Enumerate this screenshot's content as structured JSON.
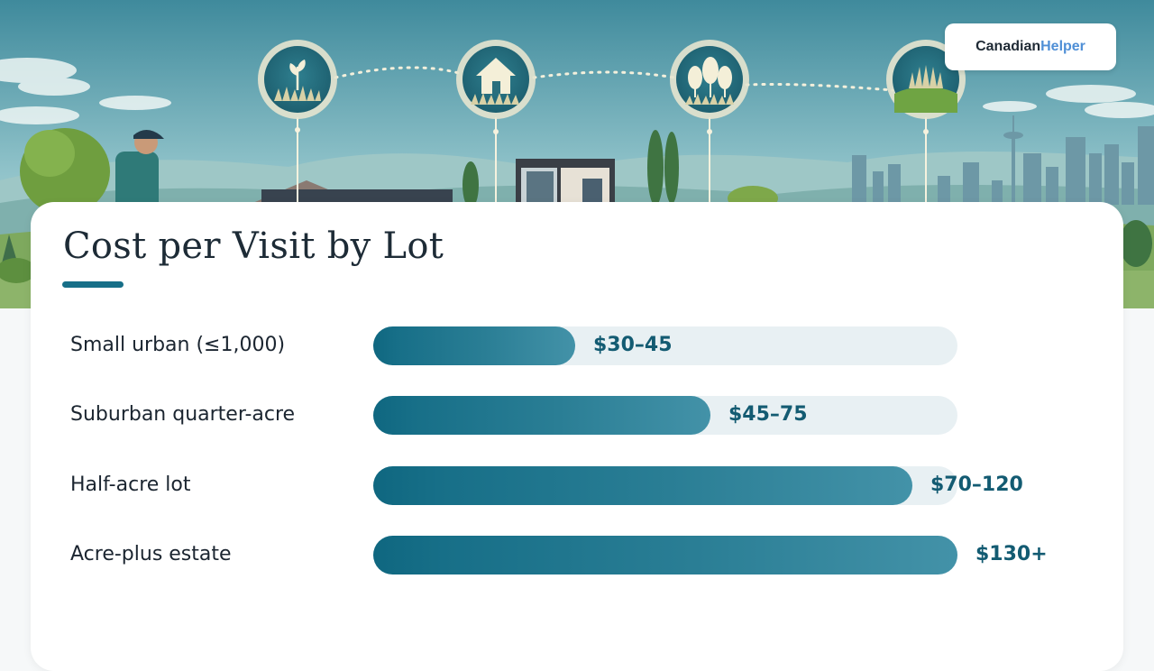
{
  "brand": {
    "name_part1": "Canadian",
    "name_part2": "Helper",
    "accent": "#4f8fd6"
  },
  "hero": {
    "icons": [
      "seedling-grass-icon",
      "house-lawn-icon",
      "trees-lawn-icon",
      "green-field-icon"
    ]
  },
  "colors": {
    "bar": "#176f88",
    "track": "#e8f0f3",
    "value_text": "#135b72"
  },
  "chart_data": {
    "type": "bar",
    "orientation": "horizontal",
    "title": "Cost per Visit by Lot",
    "categories": [
      "Small urban (≤1,000)",
      "Suburban quarter-acre",
      "Half-acre lot",
      "Acre-plus estate"
    ],
    "values": [
      45,
      75,
      120,
      130
    ],
    "ranges": [
      [
        30,
        45
      ],
      [
        45,
        75
      ],
      [
        70,
        120
      ],
      [
        130,
        null
      ]
    ],
    "value_labels": [
      "$30–45",
      "$45–75",
      "$70–120",
      "$130+"
    ],
    "xlim": [
      0,
      130
    ]
  }
}
